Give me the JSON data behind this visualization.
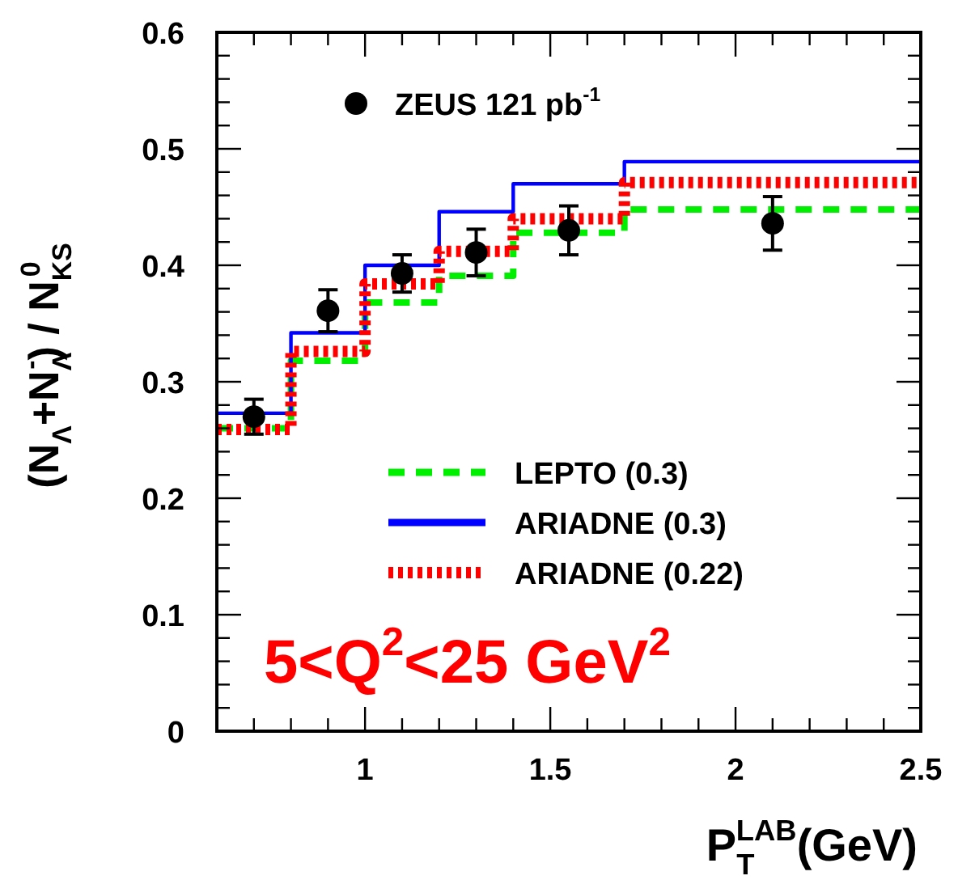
{
  "chart_data": {
    "type": "step",
    "xlabel": "P$_{T}$$^{LAB}$(GeV)",
    "ylabel": "(N$_{Λ}$+N$_{Λ}$$^{-}$) / N$_{KS}$$^{0}$",
    "xlim": [
      0.6,
      2.5
    ],
    "ylim": [
      0,
      0.6
    ],
    "xticks": [
      {
        "value": 0.6,
        "label": null
      },
      {
        "value": 0.7,
        "label": null
      },
      {
        "value": 0.8,
        "label": null
      },
      {
        "value": 0.9,
        "label": null
      },
      1,
      {
        "value": 1.1,
        "label": null
      },
      {
        "value": 1.2,
        "label": null
      },
      {
        "value": 1.3,
        "label": null
      },
      {
        "value": 1.4,
        "label": null
      },
      1.5,
      {
        "value": 1.6,
        "label": null
      },
      {
        "value": 1.7,
        "label": null
      },
      {
        "value": 1.8,
        "label": null
      },
      {
        "value": 1.9,
        "label": null
      },
      2,
      {
        "value": 2.1,
        "label": null
      },
      {
        "value": 2.2,
        "label": null
      },
      {
        "value": 2.3,
        "label": null
      },
      {
        "value": 2.4,
        "label": null
      },
      2.5
    ],
    "yticks": [
      0,
      {
        "value": 0.02,
        "label": null
      },
      {
        "value": 0.04,
        "label": null
      },
      {
        "value": 0.06,
        "label": null
      },
      {
        "value": 0.08,
        "label": null
      },
      0.1,
      {
        "value": 0.12,
        "label": null
      },
      {
        "value": 0.14,
        "label": null
      },
      {
        "value": 0.16,
        "label": null
      },
      {
        "value": 0.18,
        "label": null
      },
      0.2,
      {
        "value": 0.22,
        "label": null
      },
      {
        "value": 0.24,
        "label": null
      },
      {
        "value": 0.26,
        "label": null
      },
      {
        "value": 0.28,
        "label": null
      },
      0.3,
      {
        "value": 0.32,
        "label": null
      },
      {
        "value": 0.34,
        "label": null
      },
      {
        "value": 0.36,
        "label": null
      },
      {
        "value": 0.38,
        "label": null
      },
      0.4,
      {
        "value": 0.42,
        "label": null
      },
      {
        "value": 0.44,
        "label": null
      },
      {
        "value": 0.46,
        "label": null
      },
      {
        "value": 0.48,
        "label": null
      },
      0.5,
      {
        "value": 0.52,
        "label": null
      },
      {
        "value": 0.54,
        "label": null
      },
      {
        "value": 0.56,
        "label": null
      },
      {
        "value": 0.58,
        "label": null
      },
      0.6
    ],
    "grid": false,
    "legend": "right",
    "series": [
      {
        "name": "ZEUS 121 pb$^{-1}$",
        "type": "scatter",
        "color": "#000000",
        "marker": "circle",
        "x": [
          0.7,
          0.9,
          1.1,
          1.3,
          1.55,
          2.1
        ],
        "values": [
          0.27,
          0.361,
          0.393,
          0.411,
          0.43,
          0.436
        ],
        "errors": [
          0.015,
          0.018,
          0.016,
          0.02,
          0.021,
          0.023
        ]
      },
      {
        "name": "LEPTO (0.3)",
        "color": "#00ee00",
        "line_style": "dashed",
        "x": [
          0.6,
          0.8,
          1.0,
          1.2,
          1.4,
          1.7,
          2.5
        ],
        "values": [
          0.26,
          0.318,
          0.368,
          0.391,
          0.428,
          0.448,
          0.448
        ]
      },
      {
        "name": "ARIADNE (0.3)",
        "color": "#0000ff",
        "line_style": "solid",
        "x": [
          0.6,
          0.8,
          1.0,
          1.2,
          1.4,
          1.7,
          2.5
        ],
        "values": [
          0.273,
          0.342,
          0.4,
          0.446,
          0.47,
          0.489,
          0.489
        ]
      },
      {
        "name": "ARIADNE (0.22)",
        "color": "#ff0000",
        "line_style": "dotted",
        "x": [
          0.6,
          0.8,
          1.0,
          1.2,
          1.4,
          1.7,
          2.5
        ],
        "values": [
          0.259,
          0.326,
          0.384,
          0.412,
          0.44,
          0.471,
          0.471
        ]
      }
    ],
    "annotations": [
      "5<Q$^{2}$<25 GeV$^{2}$"
    ]
  }
}
